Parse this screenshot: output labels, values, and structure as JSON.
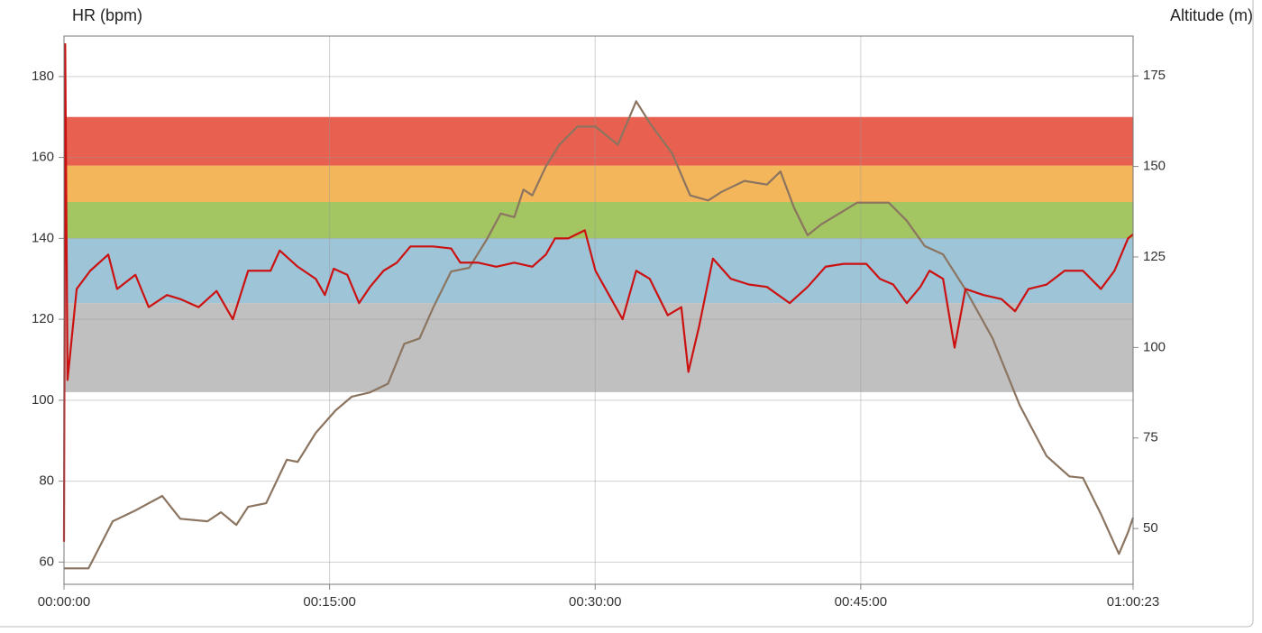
{
  "chart_data": {
    "type": "line",
    "ylabel": "HR (bpm)",
    "y2label": "Altitude (m)",
    "xlim": [
      0,
      3623
    ],
    "xticks": [
      {
        "value": 0,
        "label": "00:00:00"
      },
      {
        "value": 900,
        "label": "00:15:00"
      },
      {
        "value": 1800,
        "label": "00:30:00"
      },
      {
        "value": 2700,
        "label": "00:45:00"
      },
      {
        "value": 3623,
        "label": "01:00:23"
      }
    ],
    "ylim": [
      54.5,
      190
    ],
    "yticks": [
      60,
      80,
      100,
      120,
      140,
      160,
      180
    ],
    "y2lim": [
      34.6,
      186
    ],
    "y2ticks": [
      50,
      75,
      100,
      125,
      150,
      175
    ],
    "grid": true,
    "zones": [
      {
        "from": 102,
        "to": 124,
        "color": "#c0c0c0"
      },
      {
        "from": 124,
        "to": 140,
        "color": "#9ec4d8"
      },
      {
        "from": 140,
        "to": 149,
        "color": "#a3c662"
      },
      {
        "from": 149,
        "to": 158,
        "color": "#f4b65b"
      },
      {
        "from": 158,
        "to": 170,
        "color": "#e8604f"
      }
    ],
    "series": [
      {
        "color": "#cc1111",
        "axis": "y",
        "x": [
          0,
          4,
          12,
          43,
          89,
          150,
          180,
          242,
          287,
          349,
          394,
          456,
          517,
          572,
          624,
          700,
          731,
          792,
          853,
          884,
          914,
          960,
          1000,
          1037,
          1083,
          1128,
          1174,
          1251,
          1312,
          1343,
          1404,
          1465,
          1526,
          1587,
          1633,
          1664,
          1709,
          1765,
          1801,
          1847,
          1893,
          1939,
          1985,
          2046,
          2092,
          2116,
          2153,
          2199,
          2260,
          2321,
          2382,
          2459,
          2520,
          2581,
          2642,
          2719,
          2765,
          2810,
          2856,
          2902,
          2933,
          2979,
          3018,
          3055,
          3116,
          3177,
          3223,
          3269,
          3330,
          3391,
          3453,
          3514,
          3560,
          3606,
          3623
        ],
        "values": [
          65,
          188,
          105,
          127.5,
          132,
          136,
          127.5,
          131,
          123,
          126,
          125,
          123,
          127,
          120,
          132,
          132,
          137,
          133,
          130,
          126,
          132.5,
          131,
          124,
          128,
          132,
          134,
          138,
          138,
          137.5,
          134,
          134,
          133,
          134,
          133,
          136,
          140,
          140,
          142,
          132,
          126,
          120,
          132,
          130,
          121,
          123,
          107,
          118.5,
          135,
          130,
          128.6,
          128,
          124,
          128,
          133,
          133.7,
          133.7,
          130,
          128.6,
          124,
          128,
          132,
          130,
          113,
          127.5,
          126,
          125,
          122,
          127.5,
          128.6,
          132,
          132,
          127.5,
          132,
          140,
          141
        ]
      },
      {
        "color": "#8b7560",
        "axis": "y2",
        "x": [
          0,
          83,
          165,
          242,
          333,
          394,
          486,
          532,
          584,
          624,
          685,
          755,
          792,
          853,
          920,
          975,
          1037,
          1098,
          1153,
          1205,
          1251,
          1312,
          1373,
          1434,
          1480,
          1526,
          1557,
          1587,
          1633,
          1679,
          1740,
          1801,
          1877,
          1939,
          1985,
          2061,
          2122,
          2183,
          2229,
          2306,
          2382,
          2428,
          2474,
          2520,
          2566,
          2627,
          2688,
          2795,
          2856,
          2917,
          2979,
          3055,
          3147,
          3239,
          3330,
          3407,
          3453,
          3514,
          3575,
          3606,
          3623
        ],
        "values": [
          39,
          39,
          52,
          55,
          59,
          52.7,
          52,
          54.5,
          51,
          56,
          57,
          69,
          68.4,
          76.4,
          82.6,
          86.4,
          87.6,
          90,
          101,
          102.5,
          111,
          121,
          122,
          130,
          137,
          136,
          143.6,
          142,
          150,
          156,
          161,
          161,
          156,
          168,
          162,
          153.6,
          142,
          140.6,
          143,
          146,
          145,
          148.6,
          138.6,
          131,
          134,
          137,
          140,
          140,
          135,
          128,
          125.7,
          116,
          102.5,
          84,
          70,
          64.4,
          64,
          54,
          43,
          49,
          53
        ]
      }
    ]
  }
}
